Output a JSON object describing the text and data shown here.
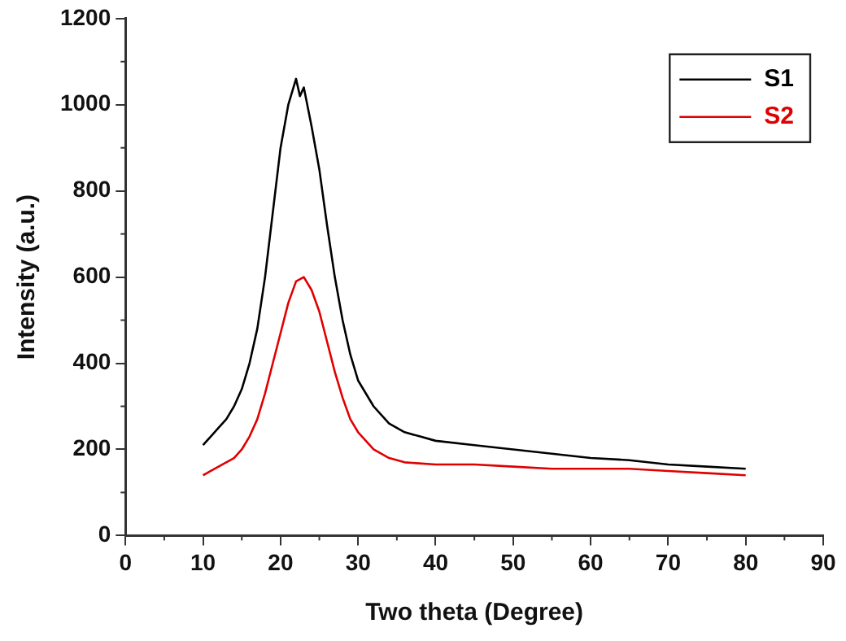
{
  "chart_data": {
    "type": "line",
    "xlabel": "Two theta (Degree)",
    "ylabel": "Intensity (a.u.)",
    "xlim": [
      0,
      90
    ],
    "xticks": [
      0,
      10,
      20,
      30,
      40,
      50,
      60,
      70,
      80,
      90
    ],
    "ylim": [
      0,
      1200
    ],
    "yticks": [
      0,
      200,
      400,
      600,
      800,
      1000,
      1200
    ],
    "grid": false,
    "legend": "top right",
    "marker": "none",
    "line_style": "solid",
    "series": [
      {
        "name": "S1",
        "color": "#000000",
        "x": [
          10,
          11,
          12,
          13,
          14,
          15,
          16,
          17,
          18,
          19,
          20,
          21,
          22,
          22.5,
          23,
          24,
          25,
          26,
          27,
          28,
          29,
          30,
          32,
          34,
          36,
          38,
          40,
          45,
          50,
          55,
          60,
          65,
          70,
          75,
          80
        ],
        "values": [
          210,
          230,
          250,
          270,
          300,
          340,
          400,
          480,
          600,
          750,
          900,
          1000,
          1060,
          1020,
          1040,
          950,
          850,
          720,
          600,
          500,
          420,
          360,
          300,
          260,
          240,
          230,
          220,
          210,
          200,
          190,
          180,
          175,
          165,
          160,
          155
        ]
      },
      {
        "name": "S2",
        "color": "#e00000",
        "x": [
          10,
          12,
          14,
          15,
          16,
          17,
          18,
          19,
          20,
          21,
          22,
          23,
          24,
          25,
          26,
          27,
          28,
          29,
          30,
          32,
          34,
          36,
          40,
          45,
          50,
          55,
          60,
          65,
          70,
          75,
          80
        ],
        "values": [
          140,
          160,
          180,
          200,
          230,
          270,
          330,
          400,
          470,
          540,
          590,
          600,
          570,
          520,
          450,
          380,
          320,
          270,
          240,
          200,
          180,
          170,
          165,
          165,
          160,
          155,
          155,
          155,
          150,
          145,
          140
        ]
      }
    ]
  }
}
